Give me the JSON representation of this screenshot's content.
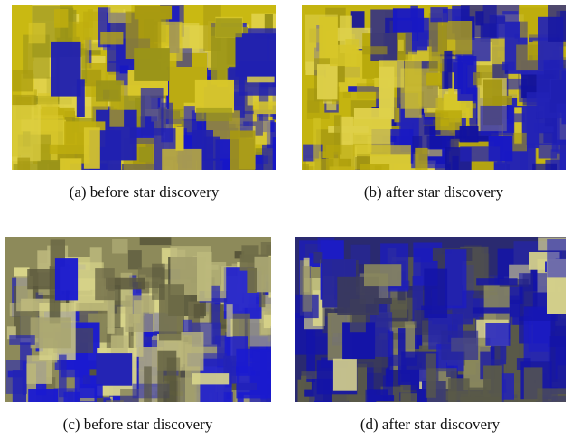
{
  "figure": {
    "panels": [
      {
        "caption": "(a) before star discovery"
      },
      {
        "caption": "(b) after star discovery"
      },
      {
        "caption": "(c) before star discovery"
      },
      {
        "caption": "(d) after star discovery"
      }
    ]
  }
}
